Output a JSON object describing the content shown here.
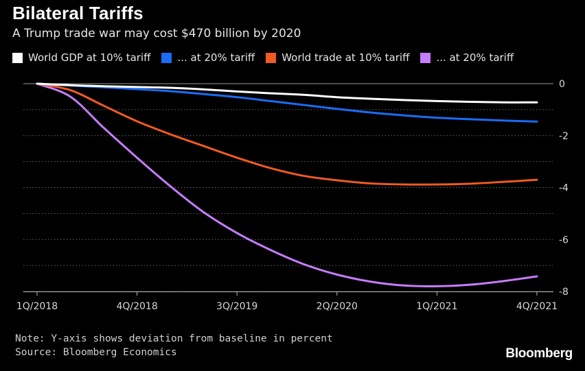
{
  "header": {
    "title": "Bilateral Tariffs",
    "subtitle": "A Trump trade war may cost $470 billion by 2020"
  },
  "footer": {
    "note": "Note: Y-axis shows deviation from baseline in percent",
    "source": "Source: Bloomberg Economics",
    "brand": "Bloomberg"
  },
  "chart_data": {
    "type": "line",
    "title": "Bilateral Tariffs",
    "subtitle": "A Trump trade war may cost $470 billion by 2020",
    "x": [
      "1Q/2018",
      "2Q/2018",
      "3Q/2018",
      "4Q/2018",
      "1Q/2019",
      "2Q/2019",
      "3Q/2019",
      "4Q/2019",
      "1Q/2020",
      "2Q/2020",
      "3Q/2020",
      "4Q/2020",
      "1Q/2021",
      "2Q/2021",
      "3Q/2021",
      "4Q/2021"
    ],
    "x_tick_labels": [
      "1Q/2018",
      "4Q/2018",
      "3Q/2019",
      "2Q/2020",
      "1Q/2021",
      "4Q/2021"
    ],
    "x_tick_indices": [
      0,
      3,
      6,
      9,
      12,
      15
    ],
    "ylim": [
      -8,
      0
    ],
    "y_ticks": [
      0,
      -2,
      -4,
      -6,
      -8
    ],
    "grid": true,
    "legend_position": "top",
    "series": [
      {
        "name": "World GDP at 10% tariff",
        "color": "#ffffff",
        "values": [
          0,
          -0.06,
          -0.1,
          -0.13,
          -0.16,
          -0.22,
          -0.3,
          -0.37,
          -0.43,
          -0.52,
          -0.58,
          -0.63,
          -0.67,
          -0.7,
          -0.72,
          -0.72
        ]
      },
      {
        "name": "... at 20% tariff",
        "color": "#1a6cf5",
        "values": [
          0,
          -0.07,
          -0.14,
          -0.21,
          -0.29,
          -0.4,
          -0.52,
          -0.67,
          -0.82,
          -0.97,
          -1.11,
          -1.22,
          -1.31,
          -1.37,
          -1.42,
          -1.46
        ]
      },
      {
        "name": "World trade at 10% tariff",
        "color": "#f05a23",
        "values": [
          0,
          -0.25,
          -0.85,
          -1.45,
          -1.95,
          -2.4,
          -2.85,
          -3.25,
          -3.55,
          -3.72,
          -3.84,
          -3.88,
          -3.88,
          -3.85,
          -3.78,
          -3.7
        ]
      },
      {
        "name": "... at 20% tariff",
        "color": "#c77dff",
        "values": [
          0,
          -0.5,
          -1.7,
          -2.85,
          -3.95,
          -4.95,
          -5.75,
          -6.4,
          -6.95,
          -7.35,
          -7.62,
          -7.77,
          -7.8,
          -7.74,
          -7.6,
          -7.42
        ]
      }
    ]
  }
}
